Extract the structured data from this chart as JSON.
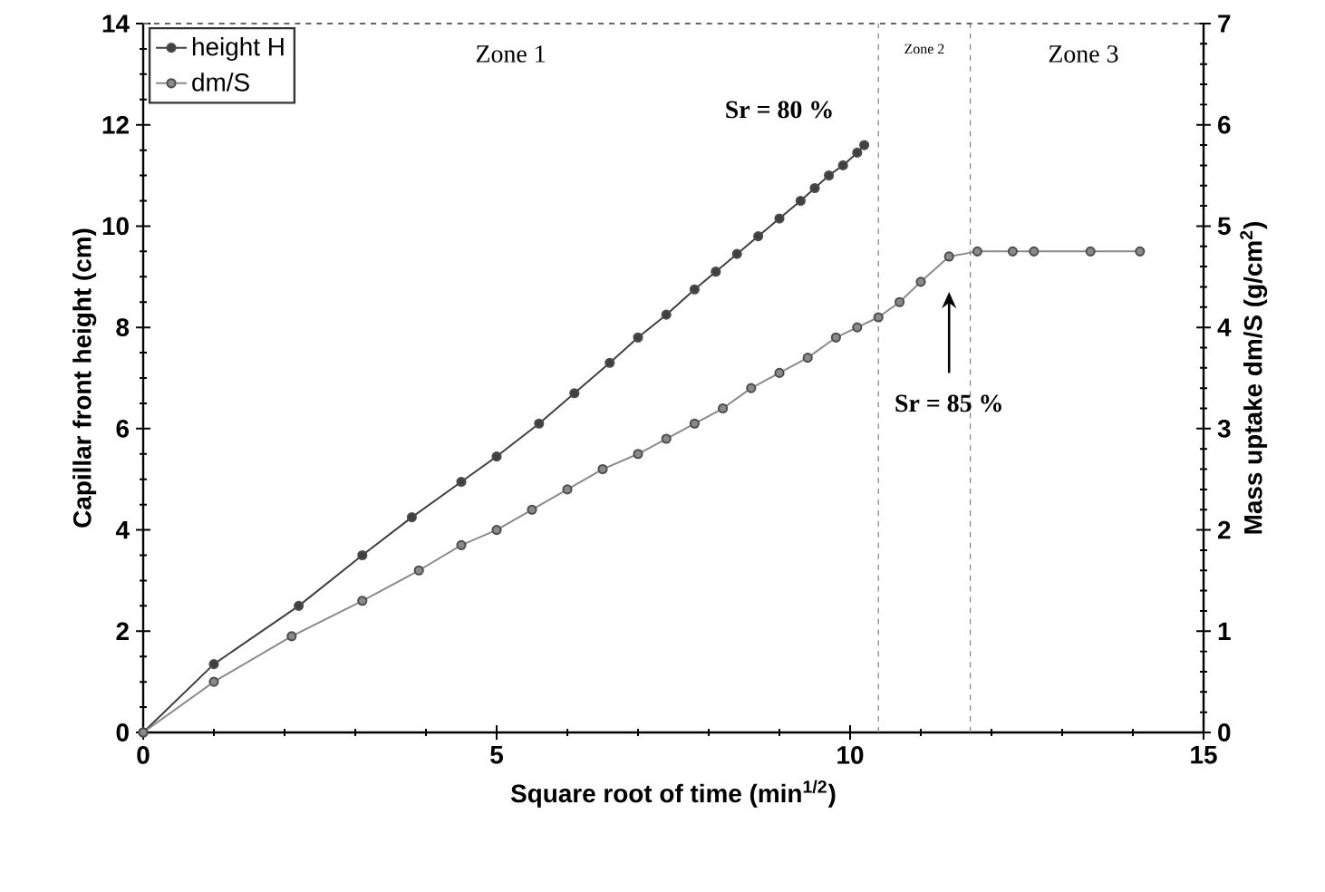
{
  "chart_data": {
    "type": "line",
    "xlabel": "Square root of time (min$^{1/2}$)",
    "ylabel": "Capillar front height (cm)",
    "y2label": "Mass uptake dm/S (g/cm$^{2}$)",
    "xlim": [
      0,
      15
    ],
    "xticks": [
      0,
      5,
      10,
      15
    ],
    "ylim": [
      0,
      14
    ],
    "yticks": [
      0,
      2,
      4,
      6,
      8,
      10,
      12,
      14
    ],
    "y2lim": [
      0,
      7
    ],
    "y2ticks": [
      0,
      1,
      2,
      3,
      4,
      5,
      6,
      7
    ],
    "marker": "circle",
    "line_style": "solid",
    "legend": "top left",
    "grid": false,
    "series": [
      {
        "name": "height H",
        "color": "#404040",
        "x": [
          0,
          1.0,
          2.2,
          3.1,
          3.8,
          4.5,
          5.0,
          5.6,
          6.1,
          6.6,
          7.0,
          7.4,
          7.8,
          8.1,
          8.4,
          8.7,
          9.0,
          9.3,
          9.5,
          9.7,
          9.9,
          10.1,
          10.2
        ],
        "values": [
          0,
          1.35,
          2.5,
          3.5,
          4.25,
          4.95,
          5.45,
          6.1,
          6.7,
          7.3,
          7.8,
          8.25,
          8.75,
          9.1,
          9.45,
          9.8,
          10.15,
          10.5,
          10.75,
          11.0,
          11.2,
          11.45,
          11.6
        ]
      },
      {
        "name": "dm/S",
        "color": "#8a8a8a",
        "axis": "y2",
        "x": [
          0,
          1.0,
          2.1,
          3.1,
          3.9,
          4.5,
          5.0,
          5.5,
          6.0,
          6.5,
          7.0,
          7.4,
          7.8,
          8.2,
          8.6,
          9.0,
          9.4,
          9.8,
          10.1,
          10.4,
          10.7,
          11.0,
          11.4,
          11.8,
          12.3,
          12.6,
          13.4,
          14.1
        ],
        "values": [
          0,
          0.5,
          0.95,
          1.3,
          1.6,
          1.85,
          2.0,
          2.2,
          2.4,
          2.6,
          2.75,
          2.9,
          3.05,
          3.2,
          3.4,
          3.55,
          3.7,
          3.9,
          4.0,
          4.1,
          4.25,
          4.45,
          4.7,
          4.75,
          4.75,
          4.75,
          4.75,
          4.75
        ]
      }
    ],
    "ref_lines": [
      {
        "axis": "x",
        "value": 10.4,
        "color": "#808080",
        "line_style": "dashed"
      },
      {
        "axis": "x",
        "value": 11.7,
        "color": "#808080",
        "line_style": "dashed"
      }
    ],
    "annotations": [
      "Zone 1",
      "Zone 2",
      "Zone 3",
      "Sr = 80  %",
      "Sr = 85  %"
    ]
  }
}
